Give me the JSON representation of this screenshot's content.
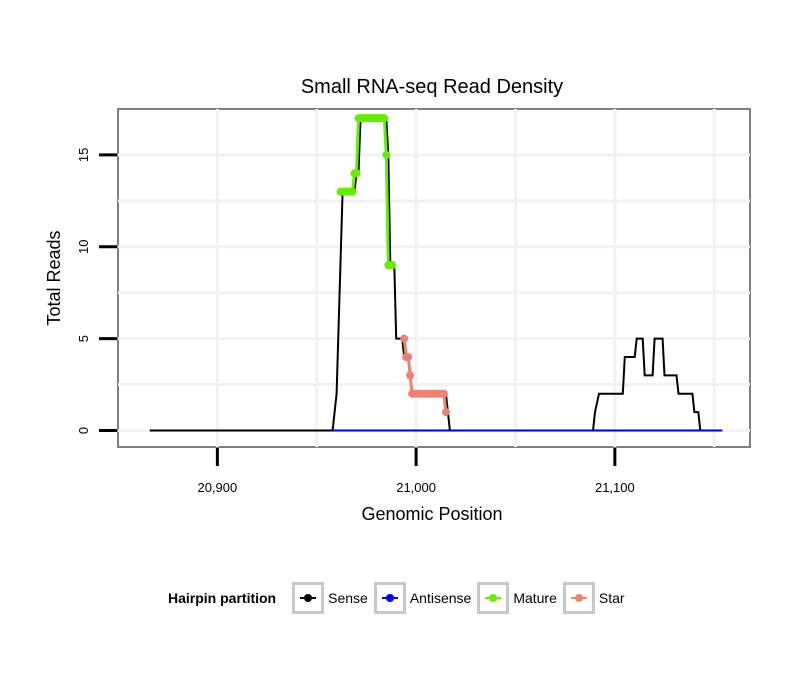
{
  "chart_data": {
    "type": "line",
    "title": "Small RNA-seq Read Density",
    "xlabel": "Genomic Position",
    "ylabel": "Total Reads",
    "xlim": [
      20850,
      21168
    ],
    "ylim": [
      -0.9,
      17.5
    ],
    "x_ticks": [
      20900,
      21000,
      21100
    ],
    "x_tick_labels": [
      "20,900",
      "21,000",
      "21,100"
    ],
    "y_ticks": [
      0,
      5,
      10,
      15
    ],
    "y_tick_labels": [
      "0",
      "5",
      "10",
      "15"
    ],
    "grid": true,
    "legend_placement": "bottom",
    "series": [
      {
        "name": "Sense",
        "color": "#000000",
        "points": [
          [
            20866,
            0
          ],
          [
            20958,
            0
          ],
          [
            20960,
            2
          ],
          [
            20963,
            13
          ],
          [
            20969,
            13
          ],
          [
            20970,
            14
          ],
          [
            20971,
            14
          ],
          [
            20972,
            17
          ],
          [
            20985,
            17
          ],
          [
            20986,
            15
          ],
          [
            20987,
            9
          ],
          [
            20989,
            9
          ],
          [
            20990,
            5
          ],
          [
            20993,
            5
          ],
          [
            20994,
            4
          ],
          [
            20996,
            4
          ],
          [
            20997,
            3
          ],
          [
            20998,
            2
          ],
          [
            21015,
            2
          ],
          [
            21016,
            1
          ],
          [
            21017,
            0
          ],
          [
            21089,
            0
          ],
          [
            21090,
            1
          ],
          [
            21092,
            2
          ],
          [
            21104,
            2
          ],
          [
            21105,
            4
          ],
          [
            21110,
            4
          ],
          [
            21111,
            5
          ],
          [
            21114,
            5
          ],
          [
            21115,
            3
          ],
          [
            21119,
            3
          ],
          [
            21120,
            5
          ],
          [
            21124,
            5
          ],
          [
            21125,
            3
          ],
          [
            21131,
            3
          ],
          [
            21132,
            2
          ],
          [
            21139,
            2
          ],
          [
            21140,
            1
          ],
          [
            21142,
            1
          ],
          [
            21143,
            0
          ],
          [
            21154,
            0
          ]
        ]
      },
      {
        "name": "Antisense",
        "color": "#0000ff",
        "points": [
          [
            20958,
            0
          ],
          [
            21154,
            0
          ]
        ]
      },
      {
        "name": "Mature",
        "color": "#66ee00",
        "points": [
          [
            20962,
            13
          ],
          [
            20963,
            13
          ],
          [
            20964,
            13
          ],
          [
            20965,
            13
          ],
          [
            20966,
            13
          ],
          [
            20967,
            13
          ],
          [
            20968,
            13
          ],
          [
            20969,
            14
          ],
          [
            20970,
            14
          ],
          [
            20971,
            17
          ],
          [
            20972,
            17
          ],
          [
            20973,
            17
          ],
          [
            20974,
            17
          ],
          [
            20975,
            17
          ],
          [
            20976,
            17
          ],
          [
            20977,
            17
          ],
          [
            20978,
            17
          ],
          [
            20979,
            17
          ],
          [
            20980,
            17
          ],
          [
            20981,
            17
          ],
          [
            20982,
            17
          ],
          [
            20983,
            17
          ],
          [
            20984,
            17
          ],
          [
            20985,
            15
          ],
          [
            20986,
            9
          ],
          [
            20987,
            9
          ],
          [
            20988,
            9
          ]
        ]
      },
      {
        "name": "Star",
        "color": "#f08070",
        "points": [
          [
            20994,
            5
          ],
          [
            20995,
            4
          ],
          [
            20996,
            4
          ],
          [
            20997,
            3
          ],
          [
            20998,
            2
          ],
          [
            20999,
            2
          ],
          [
            21000,
            2
          ],
          [
            21001,
            2
          ],
          [
            21002,
            2
          ],
          [
            21003,
            2
          ],
          [
            21004,
            2
          ],
          [
            21005,
            2
          ],
          [
            21006,
            2
          ],
          [
            21007,
            2
          ],
          [
            21008,
            2
          ],
          [
            21009,
            2
          ],
          [
            21010,
            2
          ],
          [
            21011,
            2
          ],
          [
            21012,
            2
          ],
          [
            21013,
            2
          ],
          [
            21014,
            2
          ],
          [
            21015,
            1
          ]
        ]
      }
    ]
  },
  "legend": {
    "title": "Hairpin partition",
    "items": [
      {
        "label": "Sense",
        "color": "#000000"
      },
      {
        "label": "Antisense",
        "color": "#0000ff"
      },
      {
        "label": "Mature",
        "color": "#66ee00"
      },
      {
        "label": "Star",
        "color": "#f08070"
      }
    ]
  }
}
